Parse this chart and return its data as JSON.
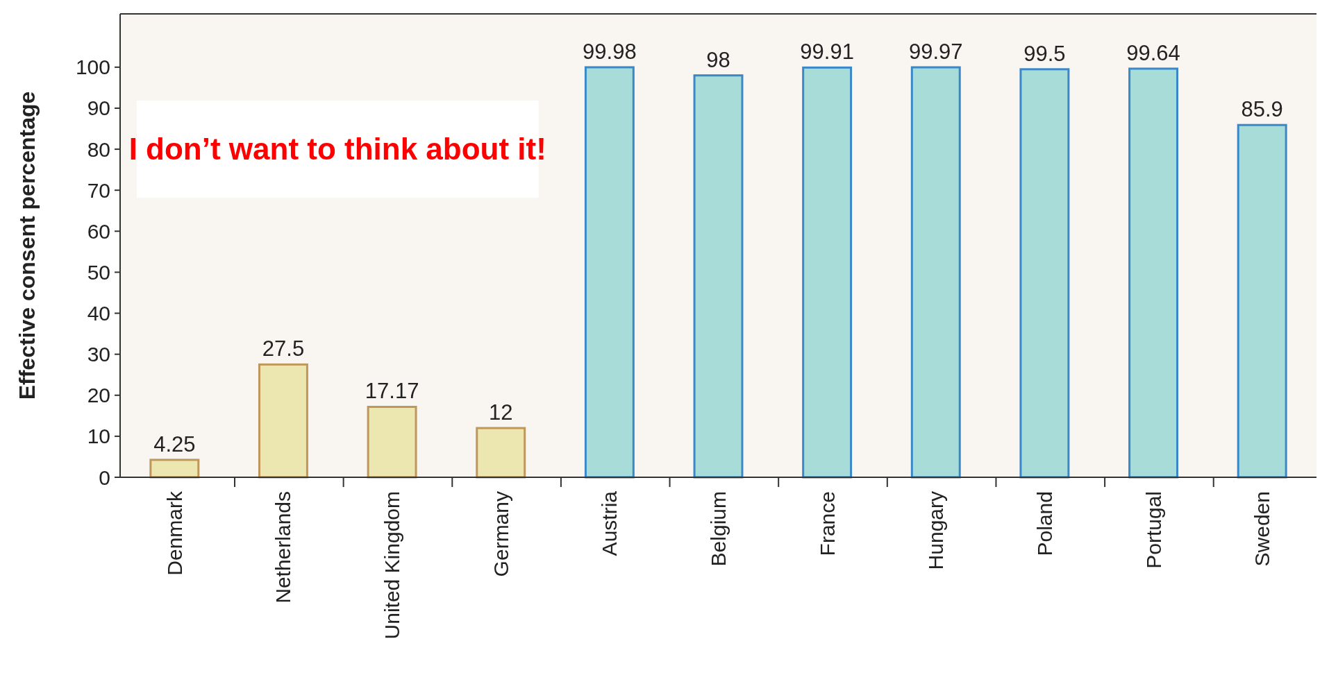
{
  "chart_data": {
    "type": "bar",
    "ylabel": "Effective consent percentage",
    "categories": [
      "Denmark",
      "Netherlands",
      "United Kingdom",
      "Germany",
      "Austria",
      "Belgium",
      "France",
      "Hungary",
      "Poland",
      "Portugal",
      "Sweden"
    ],
    "values": [
      4.25,
      27.5,
      17.17,
      12,
      99.98,
      98,
      99.91,
      99.97,
      99.5,
      99.64,
      85.9
    ],
    "colors": [
      "#ece6b0",
      "#ece6b0",
      "#ece6b0",
      "#ece6b0",
      "#a8dcd8",
      "#a8dcd8",
      "#a8dcd8",
      "#a8dcd8",
      "#a8dcd8",
      "#a8dcd8",
      "#a8dcd8"
    ],
    "ylim": [
      0,
      113
    ],
    "yticks": [
      0,
      10,
      20,
      30,
      40,
      50,
      60,
      70,
      80,
      90,
      100
    ],
    "data_labels": true,
    "annotations": [
      "I don’t want to think about it!"
    ]
  }
}
